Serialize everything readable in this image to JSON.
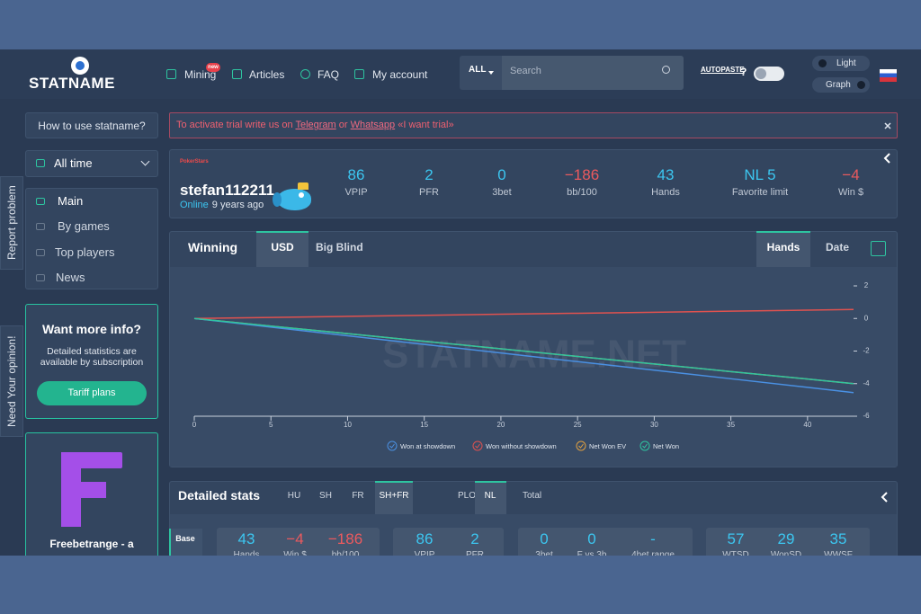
{
  "header": {
    "logo": "STATNAME",
    "nav": [
      {
        "label": "Mining",
        "badge": "new"
      },
      {
        "label": "Articles"
      },
      {
        "label": "FAQ"
      },
      {
        "label": "My account"
      }
    ],
    "search_scope": "ALL",
    "search_placeholder": "Search",
    "autopaste": "AUTOPASTE",
    "help": "?",
    "theme": "Light",
    "graph": "Graph"
  },
  "side_tabs": [
    "Report problem",
    "Need Your opinion!"
  ],
  "sidebar": {
    "how_to": "How to use statname?",
    "period": "All time",
    "menu": [
      "Main",
      "By games",
      "Top players",
      "News"
    ],
    "promo": {
      "title": "Want more info?",
      "text": "Detailed statistics are available by subscription",
      "button": "Tariff plans"
    },
    "ad": {
      "title": "Freebetrange - a"
    }
  },
  "notice": {
    "parts": [
      "To activate trial write us on ",
      "Telegram",
      " or ",
      "Whatsapp",
      " «I want trial»"
    ]
  },
  "profile": {
    "room": "PokerStars",
    "name": "stefan112211",
    "status": "Online",
    "since": "9 years ago",
    "stats": [
      {
        "value": "86",
        "label": "VPIP"
      },
      {
        "value": "2",
        "label": "PFR"
      },
      {
        "value": "0",
        "label": "3bet"
      },
      {
        "value": "−186",
        "label": "bb/100"
      },
      {
        "value": "43",
        "label": "Hands"
      },
      {
        "value": "NL 5",
        "label": "Favorite limit"
      },
      {
        "value": "−4",
        "label": "Win $"
      }
    ]
  },
  "chart_panel": {
    "unit_tabs": [
      "USD",
      "Big Blind"
    ],
    "axis_tabs": [
      "Hands",
      "Date"
    ],
    "watermark": "STATNAME.NET"
  },
  "chart_data": {
    "type": "line",
    "title": "Winning",
    "x": [
      0,
      5,
      10,
      15,
      20,
      25,
      30,
      35,
      40,
      43
    ],
    "series": [
      {
        "name": "Won at showdown",
        "color": "#4a90e2",
        "values": [
          0,
          -0.53,
          -1.06,
          -1.59,
          -2.12,
          -2.65,
          -3.17,
          -3.7,
          -4.23,
          -4.55
        ]
      },
      {
        "name": "Won without showdown",
        "color": "#e0524f",
        "values": [
          0,
          0.06,
          0.13,
          0.19,
          0.26,
          0.32,
          0.38,
          0.45,
          0.51,
          0.55
        ]
      },
      {
        "name": "Net Won EV",
        "color": "#e0a040",
        "values": [
          0,
          -0.47,
          -0.93,
          -1.4,
          -1.86,
          -2.33,
          -2.79,
          -3.26,
          -3.72,
          -4.0
        ]
      },
      {
        "name": "Net Won",
        "color": "#2ec4a0",
        "values": [
          0,
          -0.47,
          -0.93,
          -1.4,
          -1.86,
          -2.33,
          -2.79,
          -3.26,
          -3.72,
          -4.0
        ]
      }
    ],
    "xlim": [
      0,
      43
    ],
    "xticks": [
      0,
      5,
      10,
      15,
      20,
      25,
      30,
      35,
      40
    ],
    "ylim": [
      -6,
      2
    ],
    "yticks": [
      2,
      0,
      -2,
      -4,
      -6
    ],
    "y_axis_side": "right",
    "legend": "bottom"
  },
  "detailed": {
    "title": "Detailed stats",
    "format_tabs": [
      "HU",
      "SH",
      "FR",
      "SH+FR"
    ],
    "game_tabs": [
      "PLO",
      "NL",
      "Total"
    ],
    "section": "Base",
    "groups": [
      [
        {
          "value": "43",
          "label": "Hands"
        },
        {
          "value": "−4",
          "label": "Win $"
        },
        {
          "value": "−186",
          "label": "bb/100"
        }
      ],
      [
        {
          "value": "86",
          "label": "VPIP"
        },
        {
          "value": "2",
          "label": "PFR"
        }
      ],
      [
        {
          "value": "0",
          "label": "3bet"
        },
        {
          "value": "0",
          "label": "F vs 3b"
        },
        {
          "value": "-",
          "label": "4bet range"
        }
      ],
      [
        {
          "value": "57",
          "label": "WTSD"
        },
        {
          "value": "29",
          "label": "WonSD"
        },
        {
          "value": "35",
          "label": "WWSF"
        }
      ]
    ]
  }
}
